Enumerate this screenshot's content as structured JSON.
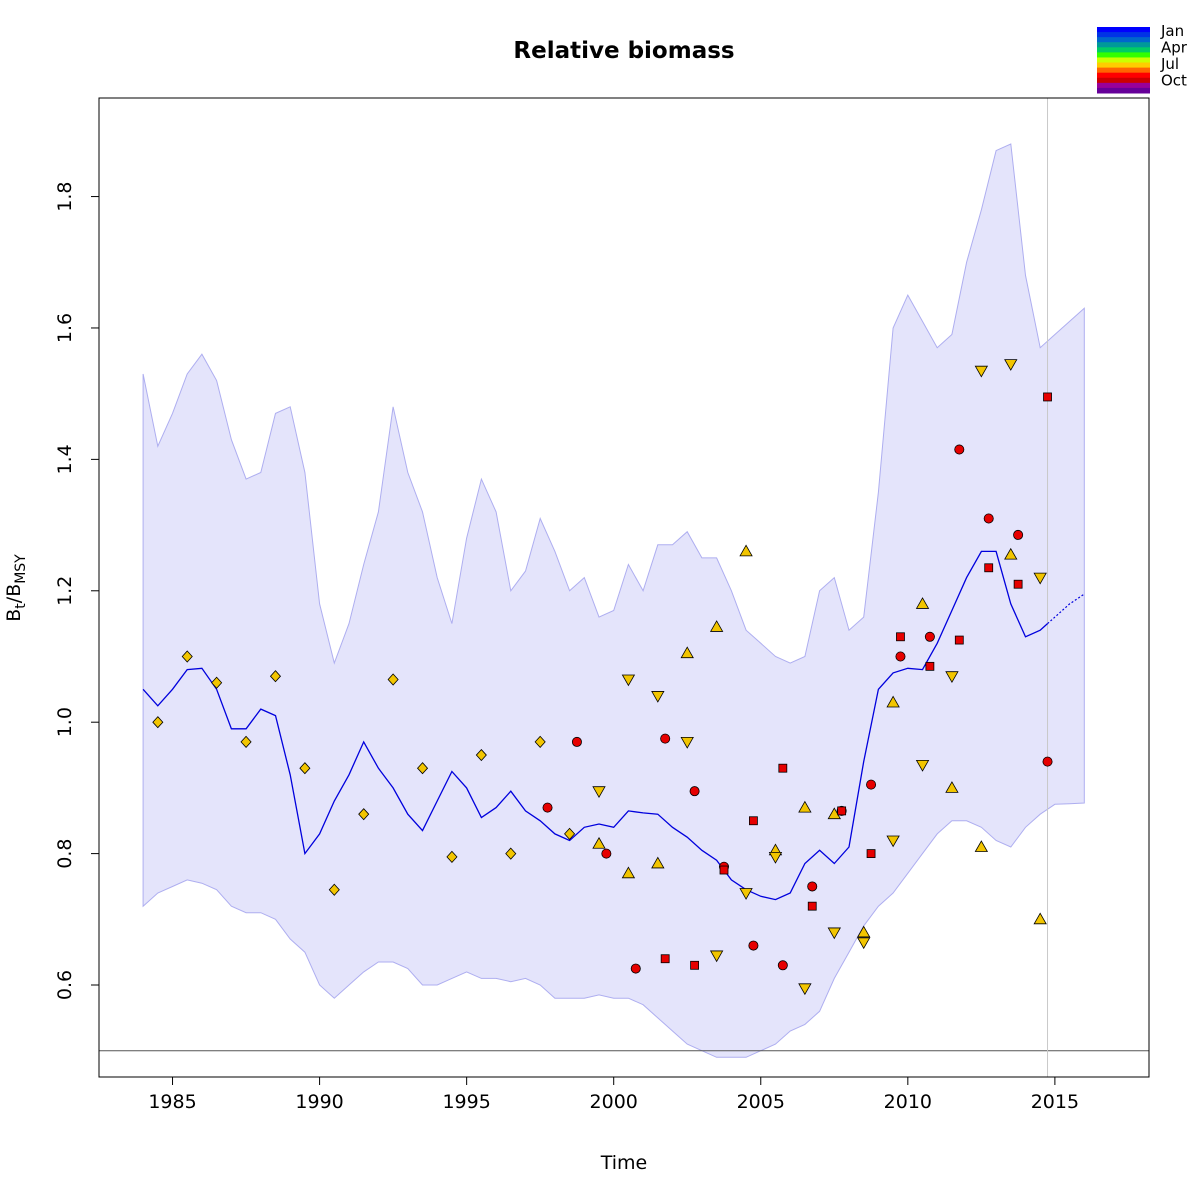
{
  "chart_data": {
    "type": "line",
    "title": "Relative biomass",
    "xlabel": "Time",
    "ylabel_main": "B",
    "ylabel_sub1": "t",
    "ylabel_sep": "/B",
    "ylabel_sub2": "MSY",
    "xlim": [
      1982.5,
      2018.2
    ],
    "ylim": [
      0.46,
      1.95
    ],
    "x_ticks": [
      1985,
      1990,
      1995,
      2000,
      2005,
      2010,
      2015
    ],
    "y_ticks": [
      0.6,
      0.8,
      1.0,
      1.2,
      1.4,
      1.6,
      1.8
    ],
    "y_tick_labels": [
      "0.6",
      "0.8",
      "1.0",
      "1.2",
      "1.4",
      "1.6",
      "1.8"
    ],
    "reference_line_y": 0.5,
    "vertical_line_x": 2014.75,
    "legend": {
      "labels": [
        "Jan",
        "Apr",
        "Jul",
        "Oct"
      ],
      "colors": [
        "#0000ff",
        "#0033e6",
        "#0066cc",
        "#009999",
        "#00cc66",
        "#33ff00",
        "#ccff00",
        "#ffcc00",
        "#ff6600",
        "#ff0000",
        "#cc0000",
        "#990099",
        "#660099"
      ]
    },
    "estimate": {
      "x": [
        1984.0,
        1984.5,
        1985.0,
        1985.5,
        1986.0,
        1986.5,
        1987.0,
        1987.5,
        1988.0,
        1988.5,
        1989.0,
        1989.5,
        1990.0,
        1990.5,
        1991.0,
        1991.5,
        1992.0,
        1992.5,
        1993.0,
        1993.5,
        1994.0,
        1994.5,
        1995.0,
        1995.5,
        1996.0,
        1996.5,
        1997.0,
        1997.5,
        1998.0,
        1998.5,
        1999.0,
        1999.5,
        2000.0,
        2000.5,
        2001.0,
        2001.5,
        2002.0,
        2002.5,
        2003.0,
        2003.5,
        2004.0,
        2004.5,
        2005.0,
        2005.5,
        2006.0,
        2006.5,
        2007.0,
        2007.5,
        2008.0,
        2008.5,
        2009.0,
        2009.5,
        2010.0,
        2010.5,
        2011.0,
        2011.5,
        2012.0,
        2012.5,
        2013.0,
        2013.5,
        2014.0,
        2014.5,
        2014.75
      ],
      "y": [
        1.05,
        1.025,
        1.05,
        1.08,
        1.082,
        1.05,
        0.99,
        0.99,
        1.02,
        1.01,
        0.92,
        0.8,
        0.83,
        0.88,
        0.92,
        0.97,
        0.93,
        0.9,
        0.86,
        0.835,
        0.88,
        0.925,
        0.9,
        0.855,
        0.87,
        0.895,
        0.865,
        0.85,
        0.83,
        0.82,
        0.84,
        0.845,
        0.84,
        0.865,
        0.862,
        0.86,
        0.84,
        0.825,
        0.805,
        0.79,
        0.76,
        0.745,
        0.735,
        0.73,
        0.74,
        0.785,
        0.805,
        0.785,
        0.81,
        0.94,
        1.05,
        1.075,
        1.082,
        1.08,
        1.12,
        1.17,
        1.22,
        1.26,
        1.26,
        1.18,
        1.13,
        1.14,
        1.15
      ]
    },
    "forecast": {
      "x": [
        2014.75,
        2015.0,
        2015.5,
        2016.0
      ],
      "y": [
        1.15,
        1.16,
        1.18,
        1.195
      ]
    },
    "ci_upper": {
      "x": [
        1984.0,
        1984.5,
        1985.0,
        1985.5,
        1986.0,
        1986.5,
        1987.0,
        1987.5,
        1988.0,
        1988.5,
        1989.0,
        1989.5,
        1990.0,
        1990.5,
        1991.0,
        1991.5,
        1992.0,
        1992.5,
        1993.0,
        1993.5,
        1994.0,
        1994.5,
        1995.0,
        1995.5,
        1996.0,
        1996.5,
        1997.0,
        1997.5,
        1998.0,
        1998.5,
        1999.0,
        1999.5,
        2000.0,
        2000.5,
        2001.0,
        2001.5,
        2002.0,
        2002.5,
        2003.0,
        2003.5,
        2004.0,
        2004.5,
        2005.0,
        2005.5,
        2006.0,
        2006.5,
        2007.0,
        2007.5,
        2008.0,
        2008.5,
        2009.0,
        2009.5,
        2010.0,
        2010.5,
        2011.0,
        2011.5,
        2012.0,
        2012.5,
        2013.0,
        2013.5,
        2014.0,
        2014.5,
        2015.0,
        2015.5,
        2016.0
      ],
      "y": [
        1.53,
        1.42,
        1.47,
        1.53,
        1.56,
        1.52,
        1.43,
        1.37,
        1.38,
        1.47,
        1.48,
        1.38,
        1.18,
        1.09,
        1.15,
        1.24,
        1.32,
        1.48,
        1.38,
        1.32,
        1.22,
        1.15,
        1.28,
        1.37,
        1.32,
        1.2,
        1.23,
        1.31,
        1.26,
        1.2,
        1.22,
        1.16,
        1.17,
        1.24,
        1.2,
        1.27,
        1.27,
        1.29,
        1.25,
        1.25,
        1.2,
        1.14,
        1.12,
        1.1,
        1.09,
        1.1,
        1.2,
        1.22,
        1.14,
        1.16,
        1.35,
        1.6,
        1.65,
        1.61,
        1.57,
        1.59,
        1.7,
        1.78,
        1.87,
        1.88,
        1.68,
        1.57,
        1.59,
        1.61,
        1.63
      ]
    },
    "ci_lower": {
      "x": [
        1984.0,
        1984.5,
        1985.0,
        1985.5,
        1986.0,
        1986.5,
        1987.0,
        1987.5,
        1988.0,
        1988.5,
        1989.0,
        1989.5,
        1990.0,
        1990.5,
        1991.0,
        1991.5,
        1992.0,
        1992.5,
        1993.0,
        1993.5,
        1994.0,
        1994.5,
        1995.0,
        1995.5,
        1996.0,
        1996.5,
        1997.0,
        1997.5,
        1998.0,
        1998.5,
        1999.0,
        1999.5,
        2000.0,
        2000.5,
        2001.0,
        2001.5,
        2002.0,
        2002.5,
        2003.0,
        2003.5,
        2004.0,
        2004.5,
        2005.0,
        2005.5,
        2006.0,
        2006.5,
        2007.0,
        2007.5,
        2008.0,
        2008.5,
        2009.0,
        2009.5,
        2010.0,
        2010.5,
        2011.0,
        2011.5,
        2012.0,
        2012.5,
        2013.0,
        2013.5,
        2014.0,
        2014.5,
        2015.0,
        2015.5,
        2016.0
      ],
      "y": [
        0.72,
        0.74,
        0.75,
        0.76,
        0.755,
        0.745,
        0.72,
        0.71,
        0.71,
        0.7,
        0.67,
        0.65,
        0.6,
        0.58,
        0.6,
        0.62,
        0.635,
        0.635,
        0.625,
        0.6,
        0.6,
        0.61,
        0.62,
        0.61,
        0.61,
        0.605,
        0.61,
        0.6,
        0.58,
        0.58,
        0.58,
        0.585,
        0.58,
        0.58,
        0.57,
        0.55,
        0.53,
        0.51,
        0.5,
        0.49,
        0.49,
        0.49,
        0.5,
        0.51,
        0.53,
        0.54,
        0.56,
        0.61,
        0.65,
        0.69,
        0.72,
        0.74,
        0.77,
        0.8,
        0.83,
        0.85,
        0.85,
        0.84,
        0.82,
        0.81,
        0.84,
        0.86,
        0.875,
        0.876,
        0.877
      ]
    },
    "series": [
      {
        "marker": "diamond",
        "color": "#f2c500",
        "x": [
          1984.5,
          1985.5,
          1986.5,
          1987.5,
          1988.5,
          1989.5,
          1990.5,
          1991.5,
          1992.5,
          1993.5,
          1994.5,
          1995.5,
          1996.5,
          1997.5,
          1998.5
        ],
        "y": [
          1.0,
          1.1,
          1.06,
          0.97,
          1.07,
          0.93,
          0.745,
          0.86,
          1.065,
          0.93,
          0.795,
          0.95,
          0.8,
          0.97,
          0.83
        ]
      },
      {
        "marker": "circle",
        "color": "#e60000",
        "x": [
          1997.75,
          1998.75,
          1999.75,
          2000.75,
          2001.75,
          2002.75,
          2003.75,
          2004.75,
          2005.75,
          2006.75,
          2007.75,
          2008.75,
          2009.75,
          2010.75,
          2011.75,
          2012.75,
          2013.75,
          2014.75
        ],
        "y": [
          0.87,
          0.97,
          0.8,
          0.625,
          0.975,
          0.895,
          0.78,
          0.66,
          0.63,
          0.75,
          0.865,
          0.905,
          1.1,
          1.13,
          1.415,
          1.31,
          1.285,
          0.94
        ]
      },
      {
        "marker": "triangle-up",
        "color": "#f2c500",
        "x": [
          1999.5,
          2000.5,
          2001.5,
          2002.5,
          2003.5,
          2004.5,
          2005.5,
          2006.5,
          2007.5,
          2008.5,
          2009.5,
          2010.5,
          2011.5,
          2012.5,
          2013.5,
          2014.5
        ],
        "y": [
          0.815,
          0.77,
          0.785,
          1.105,
          1.145,
          1.26,
          0.805,
          0.87,
          0.86,
          0.68,
          1.03,
          1.18,
          0.9,
          0.81,
          1.255,
          0.7
        ]
      },
      {
        "marker": "triangle-down",
        "color": "#f2c500",
        "x": [
          1999.5,
          2000.5,
          2001.5,
          2002.5,
          2003.5,
          2004.5,
          2005.5,
          2006.5,
          2007.5,
          2008.5,
          2009.5,
          2010.5,
          2011.5,
          2012.5,
          2013.5,
          2014.5
        ],
        "y": [
          0.895,
          1.065,
          1.04,
          0.97,
          0.645,
          0.74,
          0.795,
          0.595,
          0.68,
          0.665,
          0.82,
          0.935,
          1.07,
          1.535,
          1.545,
          1.22
        ]
      },
      {
        "marker": "square",
        "color": "#e60000",
        "x": [
          2001.75,
          2002.75,
          2003.75,
          2004.75,
          2005.75,
          2006.75,
          2007.75,
          2008.75,
          2009.75,
          2010.75,
          2011.75,
          2012.75,
          2013.75,
          2014.75
        ],
        "y": [
          0.64,
          0.63,
          0.775,
          0.85,
          0.93,
          0.72,
          0.865,
          0.8,
          1.13,
          1.085,
          1.125,
          1.235,
          1.21,
          1.495
        ]
      }
    ]
  }
}
